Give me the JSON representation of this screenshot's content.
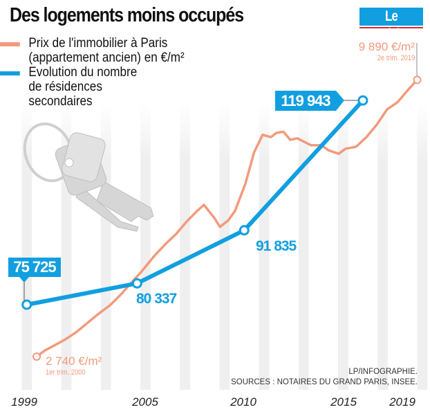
{
  "title": "Des logements moins occupés",
  "logo": "Le Parisien",
  "legend": [
    {
      "line1": "Prix de l'immobilier à Paris",
      "line2": "(appartement ancien) en €/m²",
      "color": "#f29a7c"
    },
    {
      "line1": "Evolution du nombre",
      "line2": "de résidences",
      "line3": "secondaires",
      "color": "#119fe0"
    }
  ],
  "source_lines": [
    "LP/INFOGRAPHIE.",
    "SOURCES : NOTAIRES DU GRAND PARIS, INSEE."
  ],
  "illustration": "keys",
  "chart_data": {
    "type": "line",
    "x_ticks": [
      "1999",
      "2005",
      "2010",
      "2015",
      "2019"
    ],
    "grid": "alternating vertical year bands",
    "series": [
      {
        "name": "Prix de l'immobilier à Paris (appartement ancien) en €/m²",
        "color": "#f29a7c",
        "x": [
          2000.0,
          2000.42,
          2000.94,
          2001.47,
          2002.0,
          2002.5,
          2003.04,
          2003.74,
          2004.27,
          2004.79,
          2005.31,
          2005.66,
          2006.0,
          2006.54,
          2007.06,
          2007.59,
          2008.11,
          2008.46,
          2008.99,
          2009.27,
          2009.69,
          2010.03,
          2010.56,
          2011.0,
          2011.43,
          2011.85,
          2012.13,
          2012.48,
          2012.83,
          2013.18,
          2013.53,
          2013.88,
          2014.41,
          2014.76,
          2015.28,
          2015.62,
          2016.15,
          2016.68,
          2017.2,
          2017.73,
          2018.25,
          2018.78,
          2019.25
        ],
        "values": [
          2740,
          2900,
          3040,
          3190,
          3370,
          3580,
          3810,
          4080,
          4350,
          4650,
          4940,
          5160,
          5370,
          5660,
          5910,
          6230,
          6500,
          6660,
          6320,
          6090,
          6260,
          6500,
          7210,
          8020,
          8470,
          8410,
          8520,
          8550,
          8340,
          8380,
          8290,
          8200,
          8200,
          8070,
          7980,
          8110,
          8160,
          8410,
          8730,
          9130,
          9310,
          9630,
          9890
        ],
        "annotations": [
          {
            "value_label": "2 740 €/m²",
            "period_label": "1er trim. 2000"
          },
          {
            "value_label": "9 890 €/m²",
            "period_label": "2e trim. 2019"
          }
        ]
      },
      {
        "name": "Evolution du nombre de résidences secondaires",
        "color": "#119fe0",
        "x": [
          1999,
          2005,
          2010,
          2016
        ],
        "values": [
          75725,
          80337,
          91835,
          119943
        ],
        "labels": [
          "75 725",
          "80 337",
          "91 835",
          "119 943"
        ]
      }
    ]
  }
}
